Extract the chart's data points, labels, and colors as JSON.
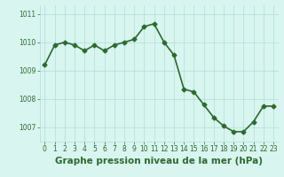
{
  "x": [
    0,
    1,
    2,
    3,
    4,
    5,
    6,
    7,
    8,
    9,
    10,
    11,
    12,
    13,
    14,
    15,
    16,
    17,
    18,
    19,
    20,
    21,
    22,
    23
  ],
  "y": [
    1009.2,
    1009.9,
    1010.0,
    1009.9,
    1009.7,
    1009.9,
    1009.7,
    1009.9,
    1010.0,
    1010.1,
    1010.55,
    1010.65,
    1010.0,
    1009.55,
    1008.35,
    1008.25,
    1007.8,
    1007.35,
    1007.05,
    1006.85,
    1006.85,
    1007.2,
    1007.75,
    1007.75
  ],
  "line_color": "#2d6a2d",
  "marker": "D",
  "marker_size": 2.5,
  "linewidth": 1.2,
  "bg_color": "#d8f5f0",
  "grid_color": "#b0ddd8",
  "xlabel": "Graphe pression niveau de la mer (hPa)",
  "ylabel": "",
  "ylim": [
    1006.5,
    1011.3
  ],
  "xlim": [
    -0.5,
    23.5
  ],
  "yticks": [
    1007,
    1008,
    1009,
    1010,
    1011
  ],
  "xticks": [
    0,
    1,
    2,
    3,
    4,
    5,
    6,
    7,
    8,
    9,
    10,
    11,
    12,
    13,
    14,
    15,
    16,
    17,
    18,
    19,
    20,
    21,
    22,
    23
  ],
  "tick_fontsize": 5.5,
  "xlabel_fontsize": 7.5,
  "label_color": "#2d6a2d"
}
